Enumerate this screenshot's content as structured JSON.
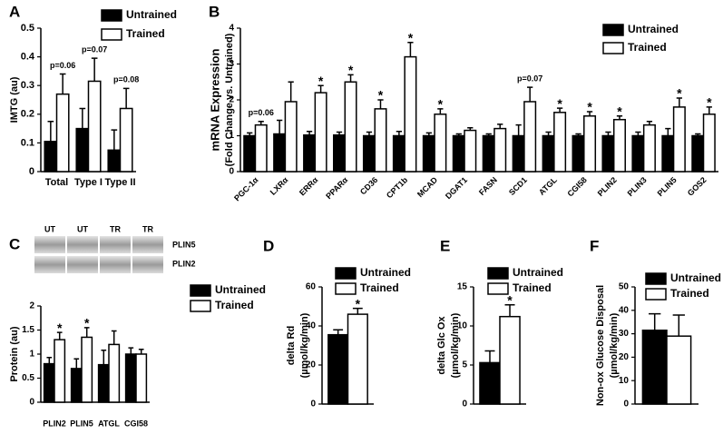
{
  "chart_data": [
    {
      "type": "bar",
      "panel": "A",
      "ylabel": [
        "IMTG (au)"
      ],
      "categories": [
        "Total",
        "Type I",
        "Type II"
      ],
      "series": [
        {
          "name": "Untrained",
          "color": "#000000",
          "values": [
            0.105,
            0.15,
            0.075
          ],
          "errors": [
            0.07,
            0.07,
            0.07
          ]
        },
        {
          "name": "Trained",
          "color": "#ffffff",
          "values": [
            0.27,
            0.315,
            0.22
          ],
          "errors": [
            0.07,
            0.08,
            0.07
          ]
        }
      ],
      "significance": [
        "p=0.06",
        "p=0.07",
        "p=0.08"
      ],
      "ylim": [
        0,
        0.5
      ],
      "yticks": [
        0,
        0.1,
        0.2,
        0.3,
        0.4,
        0.5
      ]
    },
    {
      "type": "bar",
      "panel": "B",
      "ylabel": [
        "mRNA Expression",
        "(Fold Change vs. Untrained)"
      ],
      "categories": [
        "PGC-1α",
        "LXRα",
        "ERRα",
        "PPARα",
        "CD36",
        "CPT1b",
        "MCAD",
        "DGAT1",
        "FASN",
        "SCD1",
        "ATGL",
        "CGI58",
        "PLIN2",
        "PLIN3",
        "PLIN5",
        "GOS2"
      ],
      "series": [
        {
          "name": "Untrained",
          "color": "#000000",
          "values": [
            1,
            1.05,
            1.02,
            1.02,
            1,
            1,
            1,
            1,
            1,
            1,
            1,
            1,
            1,
            1,
            1,
            1
          ],
          "errors": [
            0.08,
            0.38,
            0.1,
            0.08,
            0.1,
            0.12,
            0.08,
            0.05,
            0.05,
            0.3,
            0.1,
            0.05,
            0.1,
            0.1,
            0.2,
            0.05
          ]
        },
        {
          "name": "Trained",
          "color": "#ffffff",
          "values": [
            1.3,
            1.95,
            2.2,
            2.5,
            1.75,
            3.2,
            1.6,
            1.15,
            1.2,
            1.95,
            1.65,
            1.55,
            1.45,
            1.3,
            1.8,
            1.6
          ],
          "errors": [
            0.1,
            0.55,
            0.2,
            0.2,
            0.25,
            0.4,
            0.15,
            0.07,
            0.12,
            0.4,
            0.12,
            0.12,
            0.1,
            0.1,
            0.25,
            0.2
          ]
        }
      ],
      "significance": [
        "p=0.06",
        null,
        "*",
        "*",
        "*",
        "*",
        "*",
        null,
        null,
        "p=0.07",
        "*",
        "*",
        "*",
        null,
        "*",
        "*"
      ],
      "ylim": [
        0,
        4
      ],
      "yticks": [
        0,
        1,
        2,
        3,
        4
      ]
    },
    {
      "type": "bar",
      "panel": "C",
      "ylabel": [
        "Protein (au)"
      ],
      "blot_lanes": [
        "UT",
        "UT",
        "TR",
        "TR"
      ],
      "blot_proteins": [
        "PLIN5",
        "PLIN2"
      ],
      "categories": [
        "PLIN2",
        "PLIN5",
        "ATGL",
        "CGI58"
      ],
      "series": [
        {
          "name": "Untrained",
          "color": "#000000",
          "values": [
            0.8,
            0.7,
            0.78,
            1.0
          ],
          "errors": [
            0.13,
            0.2,
            0.3,
            0.13
          ]
        },
        {
          "name": "Trained",
          "color": "#ffffff",
          "values": [
            1.3,
            1.35,
            1.2,
            1.0
          ],
          "errors": [
            0.15,
            0.2,
            0.28,
            0.1
          ]
        }
      ],
      "significance": [
        "*",
        "*",
        null,
        null
      ],
      "ylim": [
        0,
        2
      ],
      "yticks": [
        0,
        0.5,
        1,
        1.5,
        2
      ]
    },
    {
      "type": "bar",
      "panel": "D",
      "ylabel": [
        "delta Rd",
        "(µmol/kg/min)"
      ],
      "categories": [
        null
      ],
      "series": [
        {
          "name": "Untrained",
          "color": "#000000",
          "values": [
            35.5
          ],
          "errors": [
            2.5
          ]
        },
        {
          "name": "Trained",
          "color": "#ffffff",
          "values": [
            46
          ],
          "errors": [
            3
          ]
        }
      ],
      "significance": [
        "*"
      ],
      "ylim": [
        0,
        60
      ],
      "yticks": [
        0,
        20,
        40,
        60
      ]
    },
    {
      "type": "bar",
      "panel": "E",
      "ylabel": [
        "delta Glc Ox",
        "(µmol/kg/min)"
      ],
      "categories": [
        null
      ],
      "series": [
        {
          "name": "Untrained",
          "color": "#000000",
          "values": [
            5.3
          ],
          "errors": [
            1.5
          ]
        },
        {
          "name": "Trained",
          "color": "#ffffff",
          "values": [
            11.2
          ],
          "errors": [
            1.5
          ]
        }
      ],
      "significance": [
        "*"
      ],
      "ylim": [
        0,
        15
      ],
      "yticks": [
        0,
        5,
        10,
        15
      ]
    },
    {
      "type": "bar",
      "panel": "F",
      "ylabel": [
        "Non-ox Glucose Disposal",
        "(µmol/kg/min)"
      ],
      "categories": [
        null
      ],
      "series": [
        {
          "name": "Untrained",
          "color": "#000000",
          "values": [
            31.5
          ],
          "errors": [
            7
          ]
        },
        {
          "name": "Trained",
          "color": "#ffffff",
          "values": [
            29
          ],
          "errors": [
            9
          ]
        }
      ],
      "significance": [
        null
      ],
      "ylim": [
        0,
        50
      ],
      "yticks": [
        0,
        10,
        20,
        30,
        40,
        50
      ]
    }
  ]
}
